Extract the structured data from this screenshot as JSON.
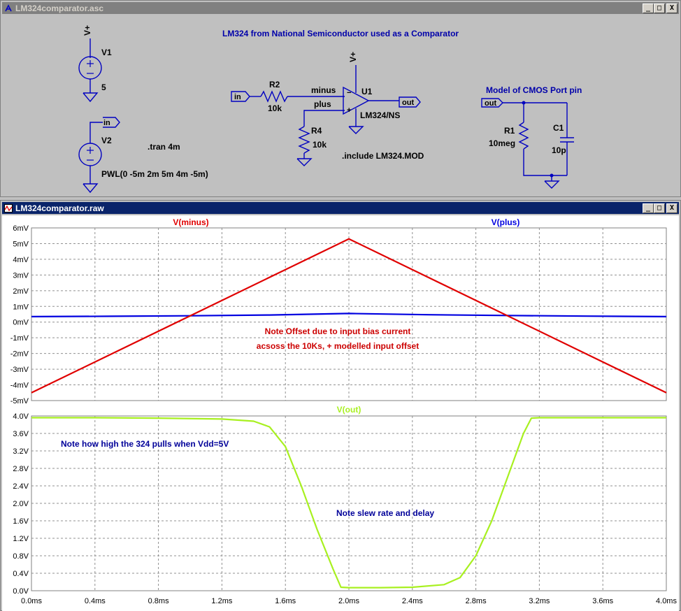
{
  "schematic_window": {
    "title": "LM324comparator.asc",
    "buttons": {
      "minimize": "_",
      "maximize": "□",
      "close": "X"
    },
    "title_note": "LM324 from National Semiconductor used as a Comparator",
    "v1": {
      "plus": "V+",
      "name": "V1",
      "value": "5"
    },
    "v2": {
      "name": "V2",
      "value": "PWL(0 -5m 2m 5m 4m -5m)",
      "label": "in"
    },
    "tran": ".tran 4m",
    "include": ".include LM324.MOD",
    "r2": {
      "name": "R2",
      "value": "10k"
    },
    "r4": {
      "name": "R4",
      "value": "10k"
    },
    "u1": {
      "name": "U1",
      "model": "LM324/NS",
      "plus": "V+"
    },
    "nets": {
      "in": "in",
      "minus": "minus",
      "plus": "plus",
      "out": "out"
    },
    "cmos": {
      "title": "Model of CMOS Port pin",
      "label": "out",
      "r1_name": "R1",
      "r1_value": "10meg",
      "c1_name": "C1",
      "c1_value": "10p"
    }
  },
  "plot_window": {
    "title": "LM324comparator.raw",
    "buttons": {
      "minimize": "_",
      "maximize": "□",
      "close": "X"
    },
    "colors": {
      "minus": "#e00000",
      "plus": "#0000e0",
      "out": "#a8f020",
      "note_red": "#cc0000",
      "note_blue": "#000099"
    },
    "top_pane": {
      "trace_labels": [
        "V(minus)",
        "V(plus)"
      ],
      "y_ticks": [
        "6mV",
        "5mV",
        "4mV",
        "3mV",
        "2mV",
        "1mV",
        "0mV",
        "-1mV",
        "-2mV",
        "-3mV",
        "-4mV",
        "-5mV"
      ],
      "note_line1": "Note Offset due to input bias current",
      "note_line2": "acsoss the 10Ks, + modelled input offset"
    },
    "bottom_pane": {
      "trace_label": "V(out)",
      "y_ticks": [
        "4.0V",
        "3.6V",
        "3.2V",
        "2.8V",
        "2.4V",
        "2.0V",
        "1.6V",
        "1.2V",
        "0.8V",
        "0.4V",
        "0.0V"
      ],
      "note_high": "Note how high the 324 pulls when Vdd=5V",
      "note_slew": "Note slew rate and delay"
    },
    "x_ticks": [
      "0.0ms",
      "0.4ms",
      "0.8ms",
      "1.2ms",
      "1.6ms",
      "2.0ms",
      "2.4ms",
      "2.8ms",
      "3.2ms",
      "3.6ms",
      "4.0ms"
    ]
  },
  "chart_data": [
    {
      "type": "line",
      "title": "",
      "xlabel": "",
      "ylabel": "",
      "xlim": [
        0,
        4
      ],
      "ylim": [
        -5,
        6
      ],
      "series": [
        {
          "name": "V(minus)",
          "x": [
            0,
            2,
            4
          ],
          "y": [
            -4.5,
            5.3,
            -4.5
          ]
        },
        {
          "name": "V(plus)",
          "x": [
            0,
            0.5,
            1,
            1.5,
            2,
            2.5,
            3,
            3.5,
            4
          ],
          "y": [
            0.35,
            0.37,
            0.4,
            0.45,
            0.55,
            0.47,
            0.42,
            0.38,
            0.35
          ]
        }
      ]
    },
    {
      "type": "line",
      "title": "",
      "xlabel": "",
      "ylabel": "",
      "xlim": [
        0,
        4
      ],
      "ylim": [
        0,
        4
      ],
      "series": [
        {
          "name": "V(out)",
          "x": [
            0,
            0.4,
            0.8,
            1.2,
            1.4,
            1.5,
            1.6,
            1.7,
            1.8,
            1.9,
            1.95,
            2.0,
            2.2,
            2.4,
            2.6,
            2.7,
            2.8,
            2.9,
            3.0,
            3.1,
            3.15,
            3.2,
            3.6,
            4.0
          ],
          "y": [
            3.96,
            3.96,
            3.95,
            3.93,
            3.88,
            3.75,
            3.3,
            2.4,
            1.4,
            0.5,
            0.08,
            0.07,
            0.07,
            0.08,
            0.14,
            0.3,
            0.8,
            1.6,
            2.6,
            3.6,
            3.95,
            3.96,
            3.96,
            3.96
          ]
        }
      ]
    }
  ]
}
